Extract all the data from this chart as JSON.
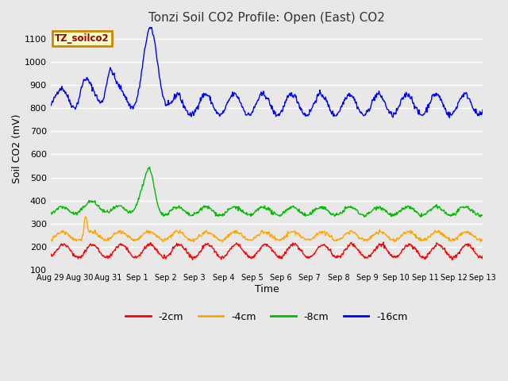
{
  "title": "Tonzi Soil CO2 Profile: Open (East) CO2",
  "xlabel": "Time",
  "ylabel": "Soil CO2 (mV)",
  "ylim": [
    100,
    1150
  ],
  "yticks": [
    100,
    200,
    300,
    400,
    500,
    600,
    700,
    800,
    900,
    1000,
    1100
  ],
  "plot_bg_color": "#e8e8e8",
  "fig_bg_color": "#e8e8e8",
  "grid_color": "#ffffff",
  "line_colors": {
    "-2cm": "#ff0000",
    "-4cm": "#ffa500",
    "-8cm": "#00bb00",
    "-16cm": "#0000ff"
  },
  "legend_label": "TZ_soilco2",
  "legend_fg": "#990000",
  "legend_bg": "#ffffcc",
  "legend_edge": "#cc8800",
  "x_tick_labels": [
    "Aug 29",
    "Aug 30",
    "Aug 31",
    "Sep 1",
    "Sep 2",
    "Sep 3",
    "Sep 4",
    "Sep 5",
    "Sep 6",
    "Sep 7",
    "Sep 8",
    "Sep 9",
    "Sep 10",
    "Sep 11",
    "Sep 12",
    "Sep 13"
  ],
  "title_fontsize": 11,
  "axis_label_fontsize": 9,
  "tick_fontsize": 7,
  "legend_fontsize": 9
}
